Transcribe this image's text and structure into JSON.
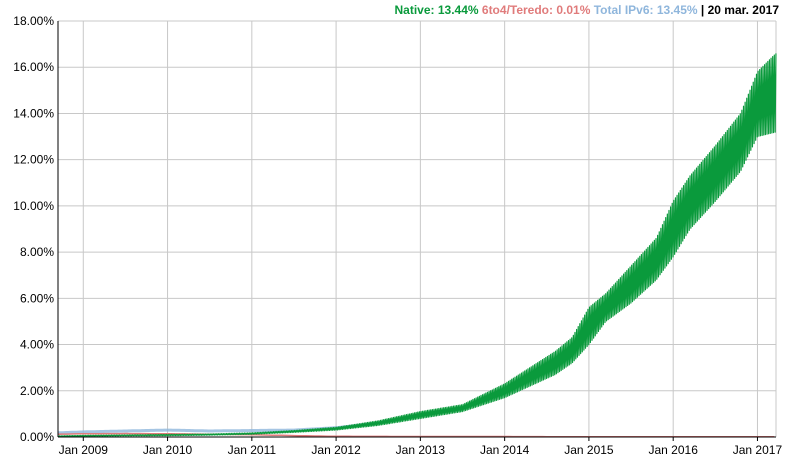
{
  "header": {
    "native": "Native: 13.44%",
    "teredo": "6to4/Teredo: 0.01%",
    "total": "Total IPv6: 13.45%",
    "separator": "|",
    "date": "20 mar. 2017"
  },
  "colors": {
    "native": "#0a9a3c",
    "teredo": "#e07b7b",
    "total": "#8fb6dc",
    "grid": "#c8c8c8"
  },
  "chart_data": {
    "type": "area",
    "title": "",
    "xlabel": "",
    "ylabel": "",
    "ylim": [
      0,
      18
    ],
    "y_ticks": [
      0,
      2,
      4,
      6,
      8,
      10,
      12,
      14,
      16,
      18
    ],
    "y_tick_labels": [
      "0.00%",
      "2.00%",
      "4.00%",
      "6.00%",
      "8.00%",
      "10.00%",
      "12.00%",
      "14.00%",
      "16.00%",
      "18.00%"
    ],
    "x_ticks": [
      2009,
      2010,
      2011,
      2012,
      2013,
      2014,
      2015,
      2016,
      2017
    ],
    "x_tick_labels": [
      "Jan 2009",
      "Jan 2010",
      "Jan 2011",
      "Jan 2012",
      "Jan 2013",
      "Jan 2014",
      "Jan 2015",
      "Jan 2016",
      "Jan 2017"
    ],
    "xlim": [
      2008.7,
      2017.22
    ],
    "grid": true,
    "series": [
      {
        "name": "Native",
        "x": [
          2008.7,
          2009.0,
          2009.5,
          2010.0,
          2010.5,
          2011.0,
          2011.5,
          2012.0,
          2012.5,
          2013.0,
          2013.5,
          2014.0,
          2014.3,
          2014.6,
          2014.8,
          2015.0,
          2015.2,
          2015.5,
          2015.8,
          2016.0,
          2016.2,
          2016.5,
          2016.8,
          2017.0,
          2017.22
        ],
        "low": [
          0.02,
          0.03,
          0.05,
          0.06,
          0.08,
          0.12,
          0.2,
          0.3,
          0.5,
          0.8,
          1.1,
          1.7,
          2.2,
          2.7,
          3.2,
          4.0,
          5.0,
          5.8,
          6.8,
          7.8,
          9.0,
          10.2,
          11.5,
          13.0,
          13.2
        ],
        "high": [
          0.05,
          0.07,
          0.09,
          0.11,
          0.13,
          0.18,
          0.28,
          0.42,
          0.7,
          1.1,
          1.4,
          2.3,
          3.0,
          3.7,
          4.3,
          5.6,
          6.2,
          7.4,
          8.6,
          10.2,
          11.3,
          12.6,
          14.0,
          15.8,
          16.6
        ]
      },
      {
        "name": "6to4/Teredo",
        "x": [
          2008.7,
          2009.0,
          2009.5,
          2010.0,
          2010.5,
          2011.0,
          2011.5,
          2012.0,
          2013.0,
          2014.0,
          2015.0,
          2016.0,
          2017.22
        ],
        "values": [
          0.12,
          0.14,
          0.15,
          0.14,
          0.12,
          0.1,
          0.06,
          0.03,
          0.02,
          0.02,
          0.01,
          0.01,
          0.01
        ]
      },
      {
        "name": "Total IPv6",
        "x": [
          2008.7,
          2009.0,
          2009.5,
          2010.0,
          2010.5,
          2011.0,
          2011.5,
          2012.0,
          2012.5,
          2013.0
        ],
        "values": [
          0.18,
          0.22,
          0.26,
          0.3,
          0.26,
          0.28,
          0.3,
          0.4,
          0.6,
          0.95
        ]
      }
    ]
  }
}
